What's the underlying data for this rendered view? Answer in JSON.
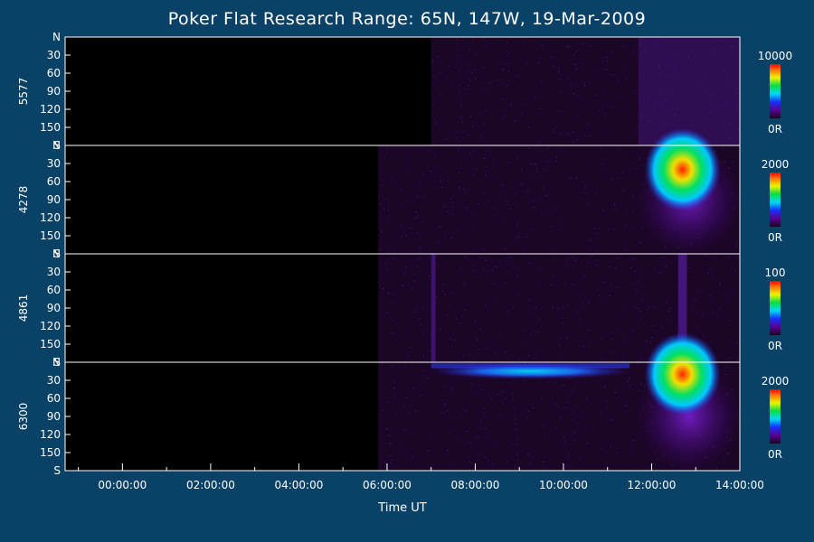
{
  "chart_data": {
    "type": "heatmap",
    "title": "Poker Flat Research Range: 65N, 147W, 19-Mar-2009",
    "xlabel": "Time UT",
    "x_ticks": [
      "00:00:00",
      "02:00:00",
      "04:00:00",
      "06:00:00",
      "08:00:00",
      "10:00:00",
      "12:00:00",
      "14:00:00"
    ],
    "x_range_hours": [
      -1.3,
      14.0
    ],
    "y_tick_labels": [
      "N",
      "30",
      "60",
      "90",
      "120",
      "150",
      "S"
    ],
    "y_range_deg": [
      0,
      180
    ],
    "panels": [
      {
        "label": "5577",
        "colorbar_max": "10000",
        "colorbar_min": "0R",
        "data_start_hours": 7.0,
        "features": [
          {
            "t_start": 11.7,
            "t_end": 14.0,
            "peak": 0.3
          }
        ]
      },
      {
        "label": "4278",
        "colorbar_max": "2000",
        "colorbar_min": "0R",
        "data_start_hours": 5.8,
        "features": [
          {
            "t_start": 11.7,
            "t_end": 14.0,
            "peak": 1.0,
            "peak_time": 12.7,
            "peak_angle": 40
          }
        ]
      },
      {
        "label": "4861",
        "colorbar_max": "100",
        "colorbar_min": "0R",
        "data_start_hours": 5.8,
        "features": [
          {
            "t_start": 7.0,
            "t_end": 7.1,
            "peak": 0.5
          },
          {
            "t_start": 12.6,
            "t_end": 12.8,
            "peak": 0.6
          }
        ]
      },
      {
        "label": "6300",
        "colorbar_max": "2000",
        "colorbar_min": "0R",
        "data_start_hours": 5.8,
        "features": [
          {
            "t_start": 7.0,
            "t_end": 11.5,
            "peak": 0.45,
            "peak_angle": 15
          },
          {
            "t_start": 11.7,
            "t_end": 14.0,
            "peak": 1.0,
            "peak_time": 12.7,
            "peak_angle": 20
          }
        ]
      }
    ]
  }
}
